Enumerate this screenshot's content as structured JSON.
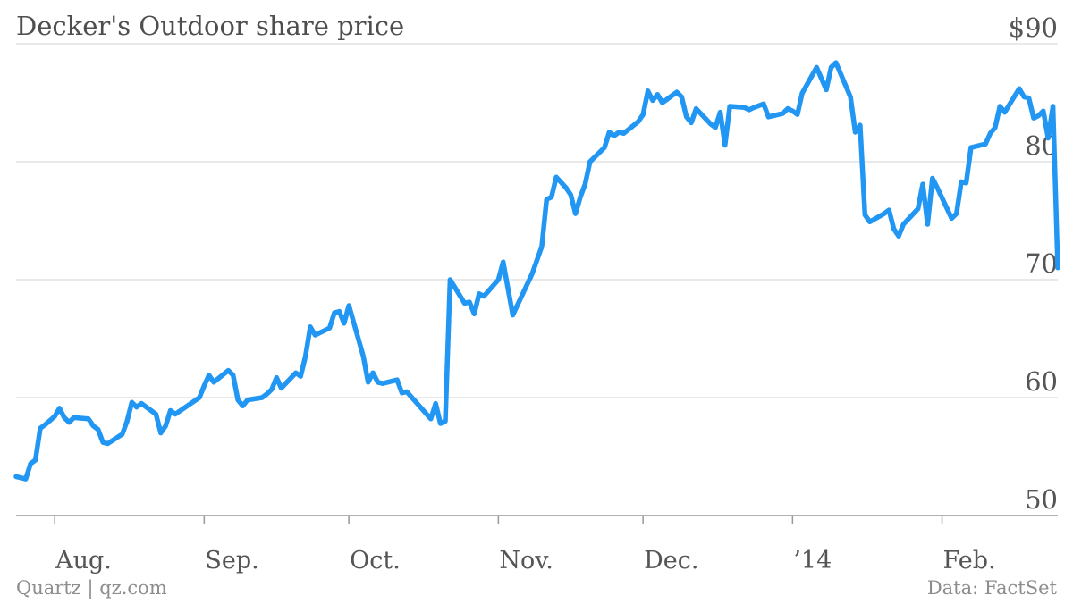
{
  "title": "Decker's Outdoor share price",
  "source_left": "Quartz | qz.com",
  "source_right": "Data: FactSet",
  "colors": {
    "line": "#2196f3",
    "grid": "#dcdcdc",
    "axis": "#999999"
  },
  "chart_data": {
    "type": "line",
    "title": "Decker's Outdoor share price",
    "xlabel": "",
    "ylabel": "",
    "ylim": [
      50,
      90
    ],
    "yticks": [
      50,
      60,
      70,
      80,
      90
    ],
    "ytick_labels": [
      "50",
      "60",
      "70",
      "80",
      "$90"
    ],
    "xticks": [
      {
        "date": "2013-08-01",
        "label": "Aug."
      },
      {
        "date": "2013-09-01",
        "label": "Sep."
      },
      {
        "date": "2013-10-01",
        "label": "Oct."
      },
      {
        "date": "2013-11-01",
        "label": "Nov."
      },
      {
        "date": "2013-12-01",
        "label": "Dec."
      },
      {
        "date": "2014-01-01",
        "label": "’14"
      },
      {
        "date": "2014-02-01",
        "label": "Feb."
      }
    ],
    "x_range": [
      "2013-07-24",
      "2014-02-25"
    ],
    "grid": true,
    "series": [
      {
        "values": [
          [
            "2013-07-24",
            53.3
          ],
          [
            "2013-07-26",
            53.1
          ],
          [
            "2013-07-27",
            54.4
          ],
          [
            "2013-07-28",
            54.7
          ],
          [
            "2013-07-29",
            57.4
          ],
          [
            "2013-07-30",
            57.7
          ],
          [
            "2013-08-01",
            58.4
          ],
          [
            "2013-08-02",
            59.1
          ],
          [
            "2013-08-03",
            58.3
          ],
          [
            "2013-08-04",
            57.9
          ],
          [
            "2013-08-05",
            58.3
          ],
          [
            "2013-08-08",
            58.2
          ],
          [
            "2013-08-09",
            57.6
          ],
          [
            "2013-08-10",
            57.3
          ],
          [
            "2013-08-11",
            56.2
          ],
          [
            "2013-08-12",
            56.1
          ],
          [
            "2013-08-15",
            56.9
          ],
          [
            "2013-08-16",
            58.0
          ],
          [
            "2013-08-17",
            59.6
          ],
          [
            "2013-08-18",
            59.2
          ],
          [
            "2013-08-19",
            59.5
          ],
          [
            "2013-08-22",
            58.6
          ],
          [
            "2013-08-23",
            57.0
          ],
          [
            "2013-08-24",
            57.6
          ],
          [
            "2013-08-25",
            58.9
          ],
          [
            "2013-08-26",
            58.6
          ],
          [
            "2013-08-31",
            60.0
          ],
          [
            "2013-09-01",
            61.0
          ],
          [
            "2013-09-02",
            61.9
          ],
          [
            "2013-09-03",
            61.3
          ],
          [
            "2013-09-06",
            62.3
          ],
          [
            "2013-09-07",
            61.9
          ],
          [
            "2013-09-08",
            59.8
          ],
          [
            "2013-09-09",
            59.3
          ],
          [
            "2013-09-10",
            59.8
          ],
          [
            "2013-09-13",
            60.0
          ],
          [
            "2013-09-14",
            60.3
          ],
          [
            "2013-09-15",
            60.7
          ],
          [
            "2013-09-16",
            61.7
          ],
          [
            "2013-09-17",
            60.8
          ],
          [
            "2013-09-20",
            62.1
          ],
          [
            "2013-09-21",
            61.8
          ],
          [
            "2013-09-22",
            63.5
          ],
          [
            "2013-09-23",
            66.0
          ],
          [
            "2013-09-24",
            65.3
          ],
          [
            "2013-09-26",
            65.7
          ],
          [
            "2013-09-27",
            65.9
          ],
          [
            "2013-09-28",
            67.2
          ],
          [
            "2013-09-29",
            67.3
          ],
          [
            "2013-09-30",
            66.3
          ],
          [
            "2013-10-01",
            67.8
          ],
          [
            "2013-10-04",
            63.5
          ],
          [
            "2013-10-05",
            61.3
          ],
          [
            "2013-10-06",
            62.1
          ],
          [
            "2013-10-07",
            61.3
          ],
          [
            "2013-10-08",
            61.2
          ],
          [
            "2013-10-11",
            61.5
          ],
          [
            "2013-10-12",
            60.4
          ],
          [
            "2013-10-13",
            60.5
          ],
          [
            "2013-10-18",
            58.2
          ],
          [
            "2013-10-19",
            59.5
          ],
          [
            "2013-10-20",
            57.8
          ],
          [
            "2013-10-21",
            58.0
          ],
          [
            "2013-10-22",
            70.0
          ],
          [
            "2013-10-25",
            68.0
          ],
          [
            "2013-10-26",
            68.1
          ],
          [
            "2013-10-27",
            67.1
          ],
          [
            "2013-10-28",
            68.8
          ],
          [
            "2013-10-29",
            68.6
          ],
          [
            "2013-11-01",
            70.0
          ],
          [
            "2013-11-02",
            71.5
          ],
          [
            "2013-11-04",
            67.0
          ],
          [
            "2013-11-08",
            70.5
          ],
          [
            "2013-11-10",
            72.8
          ],
          [
            "2013-11-11",
            76.8
          ],
          [
            "2013-11-12",
            77.0
          ],
          [
            "2013-11-13",
            78.7
          ],
          [
            "2013-11-15",
            77.8
          ],
          [
            "2013-11-16",
            77.2
          ],
          [
            "2013-11-17",
            75.6
          ],
          [
            "2013-11-18",
            77.0
          ],
          [
            "2013-11-19",
            78.1
          ],
          [
            "2013-11-20",
            80.0
          ],
          [
            "2013-11-23",
            81.2
          ],
          [
            "2013-11-24",
            82.5
          ],
          [
            "2013-11-25",
            82.2
          ],
          [
            "2013-11-26",
            82.5
          ],
          [
            "2013-11-27",
            82.4
          ],
          [
            "2013-11-30",
            83.4
          ],
          [
            "2013-12-01",
            84.0
          ],
          [
            "2013-12-02",
            86.0
          ],
          [
            "2013-12-03",
            85.2
          ],
          [
            "2013-12-04",
            85.7
          ],
          [
            "2013-12-05",
            85.0
          ],
          [
            "2013-12-08",
            85.9
          ],
          [
            "2013-12-09",
            85.5
          ],
          [
            "2013-12-10",
            83.8
          ],
          [
            "2013-12-11",
            83.3
          ],
          [
            "2013-12-12",
            84.5
          ],
          [
            "2013-12-15",
            83.2
          ],
          [
            "2013-12-16",
            82.9
          ],
          [
            "2013-12-17",
            84.2
          ],
          [
            "2013-12-18",
            81.4
          ],
          [
            "2013-12-19",
            84.7
          ],
          [
            "2013-12-22",
            84.6
          ],
          [
            "2013-12-23",
            84.4
          ],
          [
            "2013-12-24",
            84.6
          ],
          [
            "2013-12-26",
            84.9
          ],
          [
            "2013-12-27",
            83.8
          ],
          [
            "2013-12-30",
            84.1
          ],
          [
            "2013-12-31",
            84.5
          ],
          [
            "2014-01-01",
            84.3
          ],
          [
            "2014-01-02",
            84.0
          ],
          [
            "2014-01-03",
            85.8
          ],
          [
            "2014-01-06",
            88.0
          ],
          [
            "2014-01-08",
            86.1
          ],
          [
            "2014-01-09",
            88.0
          ],
          [
            "2014-01-10",
            88.4
          ],
          [
            "2014-01-13",
            85.5
          ],
          [
            "2014-01-14",
            82.5
          ],
          [
            "2014-01-15",
            83.1
          ],
          [
            "2014-01-16",
            75.5
          ],
          [
            "2014-01-17",
            74.9
          ],
          [
            "2014-01-20",
            75.6
          ],
          [
            "2014-01-21",
            75.9
          ],
          [
            "2014-01-22",
            74.3
          ],
          [
            "2014-01-23",
            73.7
          ],
          [
            "2014-01-24",
            74.7
          ],
          [
            "2014-01-27",
            76.0
          ],
          [
            "2014-01-28",
            78.1
          ],
          [
            "2014-01-29",
            74.7
          ],
          [
            "2014-01-30",
            78.6
          ],
          [
            "2014-01-31",
            77.8
          ],
          [
            "2014-02-03",
            75.2
          ],
          [
            "2014-02-04",
            75.6
          ],
          [
            "2014-02-05",
            78.3
          ],
          [
            "2014-02-06",
            78.2
          ],
          [
            "2014-02-07",
            81.2
          ],
          [
            "2014-02-10",
            81.5
          ],
          [
            "2014-02-11",
            82.4
          ],
          [
            "2014-02-12",
            82.9
          ],
          [
            "2014-02-13",
            84.7
          ],
          [
            "2014-02-14",
            84.2
          ],
          [
            "2014-02-17",
            86.2
          ],
          [
            "2014-02-18",
            85.5
          ],
          [
            "2014-02-19",
            85.4
          ],
          [
            "2014-02-20",
            83.7
          ],
          [
            "2014-02-21",
            83.9
          ],
          [
            "2014-02-22",
            84.3
          ],
          [
            "2014-02-23",
            82.0
          ],
          [
            "2014-02-24",
            84.7
          ],
          [
            "2014-02-25",
            71.0
          ]
        ]
      }
    ]
  }
}
